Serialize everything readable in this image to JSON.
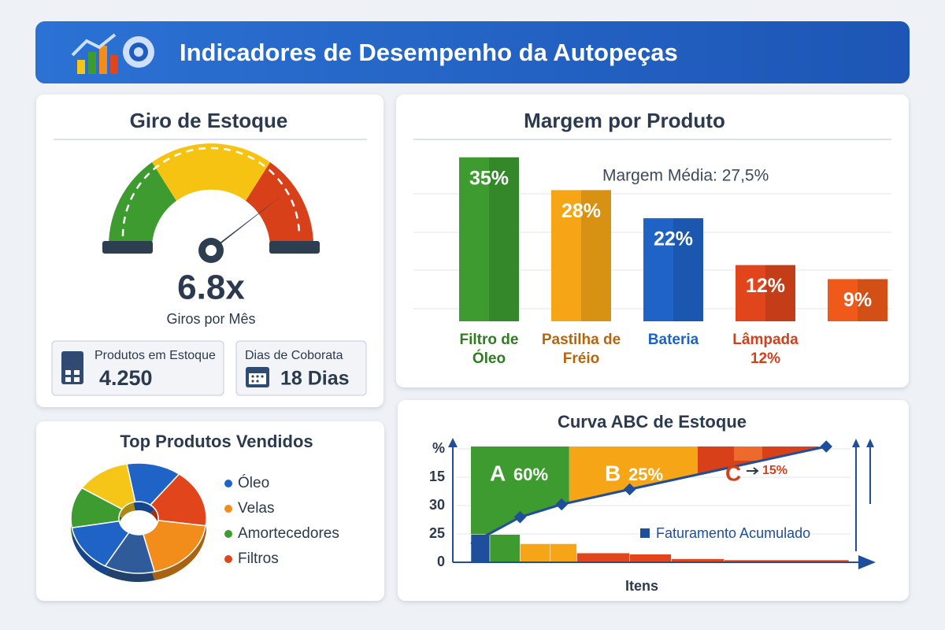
{
  "header": {
    "title": "Indicadores de Desempenho da Autopeças"
  },
  "gauge": {
    "title": "Giro de Estoque",
    "value": "6.8x",
    "caption": "Giros por Mês",
    "stats": [
      {
        "label": "Produtos em Estoque",
        "value": "4.250"
      },
      {
        "label": "Dias de Coborata",
        "value": "18 Dias"
      }
    ]
  },
  "chart_data": [
    {
      "type": "bar",
      "title": "Margem por Produto",
      "annotation": "Margem Média: 27,5%",
      "categories": [
        "Filtro de Óleo",
        "Pastilha de Fréio",
        "Bateria",
        "Lâmpada 12%",
        null
      ],
      "values": [
        35,
        28,
        22,
        12,
        9
      ],
      "value_labels": [
        "35%",
        "28%",
        "22%",
        "12%",
        "9%"
      ],
      "colors": [
        "#3d9b2f",
        "#f5a516",
        "#1f63c6",
        "#e0451c",
        "#ef5a1a"
      ],
      "label_colors": [
        "#2e7d1f",
        "#b8650a",
        "#1a64c8",
        "#d2401a",
        "#d2401a"
      ],
      "ylim": [
        0,
        40
      ]
    },
    {
      "type": "pie",
      "title": "Top Produtos Vendidos",
      "values": [
        13,
        17,
        19,
        12,
        14,
        12,
        13
      ],
      "colors": [
        "#1f63c6",
        "#e0451c",
        "#f28c1a",
        "#2f5b9a",
        "#1f63c6",
        "#3d9b2f",
        "#f5c518"
      ],
      "legend": [
        {
          "name": "Óleo",
          "color": "#1f63c6"
        },
        {
          "name": "Velas",
          "color": "#f28c1a"
        },
        {
          "name": "Amortecedores",
          "color": "#3d9b2f"
        },
        {
          "name": "Filtros",
          "color": "#e0451c"
        }
      ]
    },
    {
      "type": "abc",
      "title": "Curva ABC de Estoque",
      "x_label": "Itens",
      "y_labels": [
        "%",
        "15",
        "30",
        "25",
        "0"
      ],
      "zones": [
        {
          "name": "A",
          "label": "60%",
          "color": "#3d9b2f"
        },
        {
          "name": "B",
          "label": "25%",
          "color": "#f5a516"
        },
        {
          "name": "C",
          "label": "15%",
          "color": "#d8401a"
        }
      ],
      "series": [
        {
          "name": "Faturamento Acumulado",
          "color": "#1f4e9c",
          "x": [
            0,
            13,
            24,
            42,
            94
          ],
          "values": [
            16,
            39,
            50,
            63,
            100
          ]
        }
      ],
      "bars": {
        "bins": [
          0,
          5,
          13,
          21,
          28,
          42,
          53,
          67,
          100
        ],
        "values": [
          24,
          24,
          16,
          16,
          8,
          7,
          3,
          2
        ],
        "colors": [
          "#1f4e9c",
          "#3d9b2f",
          "#f5a516",
          "#f5a516",
          "#e0451c",
          "#e0451c",
          "#e0451c",
          "#e0451c"
        ]
      },
      "xlim": [
        0,
        100
      ],
      "ylim": [
        0,
        100
      ]
    }
  ]
}
